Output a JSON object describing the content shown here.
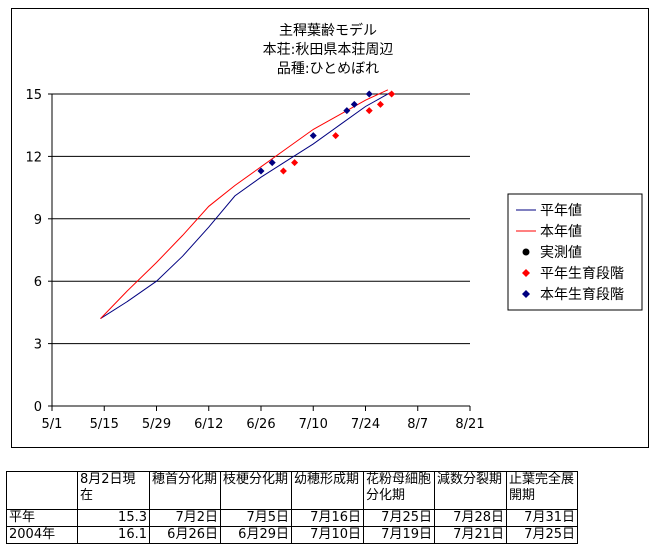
{
  "chart_data": {
    "type": "line",
    "title": [
      "主稈葉齢モデル",
      "本荘:秋田県本荘周辺",
      "品種:ひとめぼれ"
    ],
    "x_ticks": [
      "5/1",
      "5/15",
      "5/29",
      "6/12",
      "6/26",
      "7/10",
      "7/24",
      "8/7",
      "8/21"
    ],
    "x_tick_days": [
      0,
      14,
      28,
      42,
      56,
      70,
      84,
      98,
      112
    ],
    "ylim": [
      0,
      15
    ],
    "yticks": [
      0,
      3,
      6,
      9,
      12,
      15
    ],
    "xlim_days": [
      0,
      112
    ],
    "grid": "horizontal",
    "legend_position": "right",
    "series": [
      {
        "name": "平年値",
        "color": "#000080",
        "x_days": [
          13,
          20,
          28,
          35,
          42,
          49,
          56,
          63,
          70,
          77,
          84,
          91
        ],
        "values": [
          4.2,
          5.0,
          6.0,
          7.2,
          8.6,
          10.1,
          11.0,
          11.8,
          12.6,
          13.5,
          14.4,
          15.1
        ]
      },
      {
        "name": "本年値",
        "color": "#ff0000",
        "x_days": [
          13,
          20,
          28,
          35,
          42,
          49,
          56,
          63,
          70,
          77,
          84,
          90
        ],
        "values": [
          4.2,
          5.5,
          6.9,
          8.2,
          9.6,
          10.6,
          11.5,
          12.4,
          13.3,
          14.0,
          14.7,
          15.2
        ]
      }
    ],
    "legend_marker_only": [
      {
        "name": "実測値",
        "color": "#000000"
      }
    ],
    "markers": [
      {
        "name": "平年生育段階",
        "color": "#ff0000",
        "points": [
          {
            "date": "7/2",
            "day": 62,
            "value": 11.3
          },
          {
            "date": "7/5",
            "day": 65,
            "value": 11.7
          },
          {
            "date": "7/16",
            "day": 76,
            "value": 13.0
          },
          {
            "date": "7/25",
            "day": 85,
            "value": 14.2
          },
          {
            "date": "7/28",
            "day": 88,
            "value": 14.5
          },
          {
            "date": "7/31",
            "day": 91,
            "value": 15.0
          }
        ]
      },
      {
        "name": "本年生育段階",
        "color": "#000080",
        "points": [
          {
            "date": "6/26",
            "day": 56,
            "value": 11.3
          },
          {
            "date": "6/29",
            "day": 59,
            "value": 11.7
          },
          {
            "date": "7/10",
            "day": 70,
            "value": 13.0
          },
          {
            "date": "7/19",
            "day": 79,
            "value": 14.2
          },
          {
            "date": "7/21",
            "day": 81,
            "value": 14.5
          },
          {
            "date": "7/25",
            "day": 85,
            "value": 15.0
          }
        ]
      }
    ]
  },
  "table": {
    "headers": [
      "",
      "8月2日現在",
      "穂首分化期",
      "枝梗分化期",
      "幼穂形成期",
      "花粉母細胞分化期",
      "減数分裂期",
      "止葉完全展開期"
    ],
    "rows": [
      [
        "平年",
        "15.3",
        "7月2日",
        "7月5日",
        "7月16日",
        "7月25日",
        "7月28日",
        "7月31日"
      ],
      [
        "2004年",
        "16.1",
        "6月26日",
        "6月29日",
        "7月10日",
        "7月19日",
        "7月21日",
        "7月25日"
      ]
    ]
  }
}
